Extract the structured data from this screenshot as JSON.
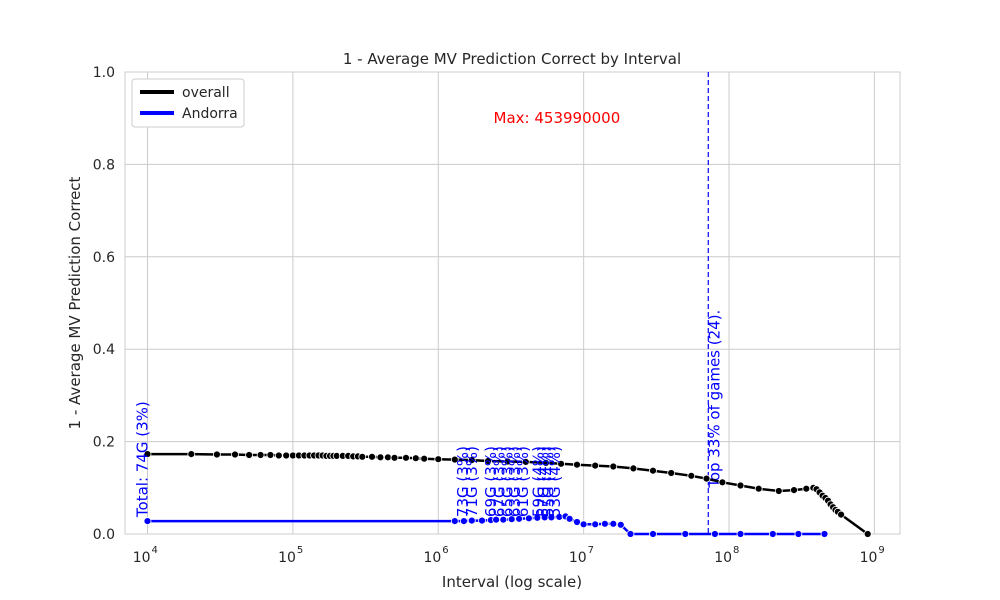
{
  "chart_data": {
    "type": "line",
    "title": "1 - Average MV Prediction Correct by Interval",
    "xlabel": "Interval (log scale)",
    "ylabel": "1 - Average MV Prediction Correct",
    "xscale": "log",
    "xlim": [
      7000,
      1500000000
    ],
    "ylim": [
      0,
      1.0
    ],
    "grid": true,
    "legend_position": "top-left",
    "x_tick_labels": [
      {
        "base": "10",
        "exp": "4",
        "value": 10000
      },
      {
        "base": "10",
        "exp": "5",
        "value": 100000
      },
      {
        "base": "10",
        "exp": "6",
        "value": 1000000
      },
      {
        "base": "10",
        "exp": "7",
        "value": 10000000
      },
      {
        "base": "10",
        "exp": "8",
        "value": 100000000
      },
      {
        "base": "10",
        "exp": "9",
        "value": 1000000000
      }
    ],
    "y_tick_labels": [
      "0.0",
      "0.2",
      "0.4",
      "0.6",
      "0.8",
      "1.0"
    ],
    "series": [
      {
        "name": "overall",
        "color": "#000000",
        "points": [
          [
            10000,
            0.173
          ],
          [
            20000,
            0.173
          ],
          [
            30000,
            0.172
          ],
          [
            40000,
            0.172
          ],
          [
            50000,
            0.171
          ],
          [
            60000,
            0.171
          ],
          [
            70000,
            0.171
          ],
          [
            80000,
            0.17
          ],
          [
            90000,
            0.17
          ],
          [
            100000,
            0.17
          ],
          [
            110000,
            0.17
          ],
          [
            120000,
            0.17
          ],
          [
            130000,
            0.17
          ],
          [
            140000,
            0.17
          ],
          [
            150000,
            0.17
          ],
          [
            160000,
            0.17
          ],
          [
            170000,
            0.169
          ],
          [
            180000,
            0.169
          ],
          [
            190000,
            0.169
          ],
          [
            200000,
            0.169
          ],
          [
            220000,
            0.169
          ],
          [
            240000,
            0.169
          ],
          [
            260000,
            0.168
          ],
          [
            280000,
            0.168
          ],
          [
            300000,
            0.167
          ],
          [
            350000,
            0.167
          ],
          [
            400000,
            0.166
          ],
          [
            450000,
            0.166
          ],
          [
            500000,
            0.165
          ],
          [
            600000,
            0.165
          ],
          [
            700000,
            0.164
          ],
          [
            800000,
            0.163
          ],
          [
            1000000,
            0.162
          ],
          [
            1300000,
            0.161
          ],
          [
            1700000,
            0.16
          ],
          [
            2200000,
            0.158
          ],
          [
            3000000,
            0.157
          ],
          [
            4000000,
            0.156
          ],
          [
            5500000,
            0.154
          ],
          [
            7000000,
            0.152
          ],
          [
            9000000,
            0.15
          ],
          [
            12000000,
            0.148
          ],
          [
            16000000,
            0.146
          ],
          [
            22000000,
            0.142
          ],
          [
            30000000,
            0.137
          ],
          [
            40000000,
            0.132
          ],
          [
            55000000,
            0.126
          ],
          [
            70000000,
            0.12
          ],
          [
            90000000,
            0.112
          ],
          [
            120000000,
            0.105
          ],
          [
            160000000,
            0.098
          ],
          [
            220000000,
            0.093
          ],
          [
            280000000,
            0.095
          ],
          [
            340000000,
            0.098
          ],
          [
            380000000,
            0.1
          ],
          [
            400000000,
            0.097
          ],
          [
            420000000,
            0.09
          ],
          [
            440000000,
            0.083
          ],
          [
            460000000,
            0.078
          ],
          [
            480000000,
            0.072
          ],
          [
            500000000,
            0.064
          ],
          [
            520000000,
            0.058
          ],
          [
            540000000,
            0.052
          ],
          [
            560000000,
            0.048
          ],
          [
            590000000,
            0.042
          ],
          [
            900000000,
            0.0
          ]
        ]
      },
      {
        "name": "Andorra",
        "color": "#0000ff",
        "points": [
          [
            10000,
            0.028
          ],
          [
            1300000,
            0.028
          ],
          [
            1500000,
            0.028
          ],
          [
            1700000,
            0.029
          ],
          [
            2000000,
            0.029
          ],
          [
            2300000,
            0.03
          ],
          [
            2500000,
            0.031
          ],
          [
            2800000,
            0.031
          ],
          [
            3200000,
            0.032
          ],
          [
            3600000,
            0.033
          ],
          [
            4200000,
            0.034
          ],
          [
            4800000,
            0.035
          ],
          [
            5400000,
            0.036
          ],
          [
            6000000,
            0.036
          ],
          [
            6800000,
            0.037
          ],
          [
            7500000,
            0.038
          ],
          [
            8000000,
            0.033
          ],
          [
            9000000,
            0.026
          ],
          [
            10000000,
            0.021
          ],
          [
            12000000,
            0.021
          ],
          [
            14000000,
            0.022
          ],
          [
            16000000,
            0.022
          ],
          [
            18000000,
            0.02
          ],
          [
            21000000,
            0.0
          ],
          [
            30000000,
            0.0
          ],
          [
            50000000,
            0.0
          ],
          [
            80000000,
            0.0
          ],
          [
            120000000,
            0.0
          ],
          [
            200000000,
            0.0
          ],
          [
            300000000,
            0.0
          ],
          [
            453990000,
            0.0
          ]
        ]
      }
    ],
    "vline": {
      "x": 72000000,
      "label": "Top 33% of games (24)."
    },
    "max_annotation": {
      "text": "Max: 453990000",
      "x": 2400000,
      "y": 0.9
    },
    "point_annotations": [
      {
        "text": "Total: 74G (3%)",
        "x": 10000
      },
      {
        "text": "73G (3%)",
        "x": 1600000
      },
      {
        "text": "71G (3%)",
        "x": 1850000
      },
      {
        "text": "69G (3%)",
        "x": 2500000
      },
      {
        "text": "67G (3%)",
        "x": 2850000
      },
      {
        "text": "65G (3%)",
        "x": 3250000
      },
      {
        "text": "63G (3%)",
        "x": 3650000
      },
      {
        "text": "61G (3%)",
        "x": 4150000
      },
      {
        "text": "59G (4%)",
        "x": 5300000
      },
      {
        "text": "57G (4%)",
        "x": 5750000
      },
      {
        "text": "55G (4%)",
        "x": 6200000
      },
      {
        "text": "53G (4%)",
        "x": 6850000
      }
    ]
  }
}
